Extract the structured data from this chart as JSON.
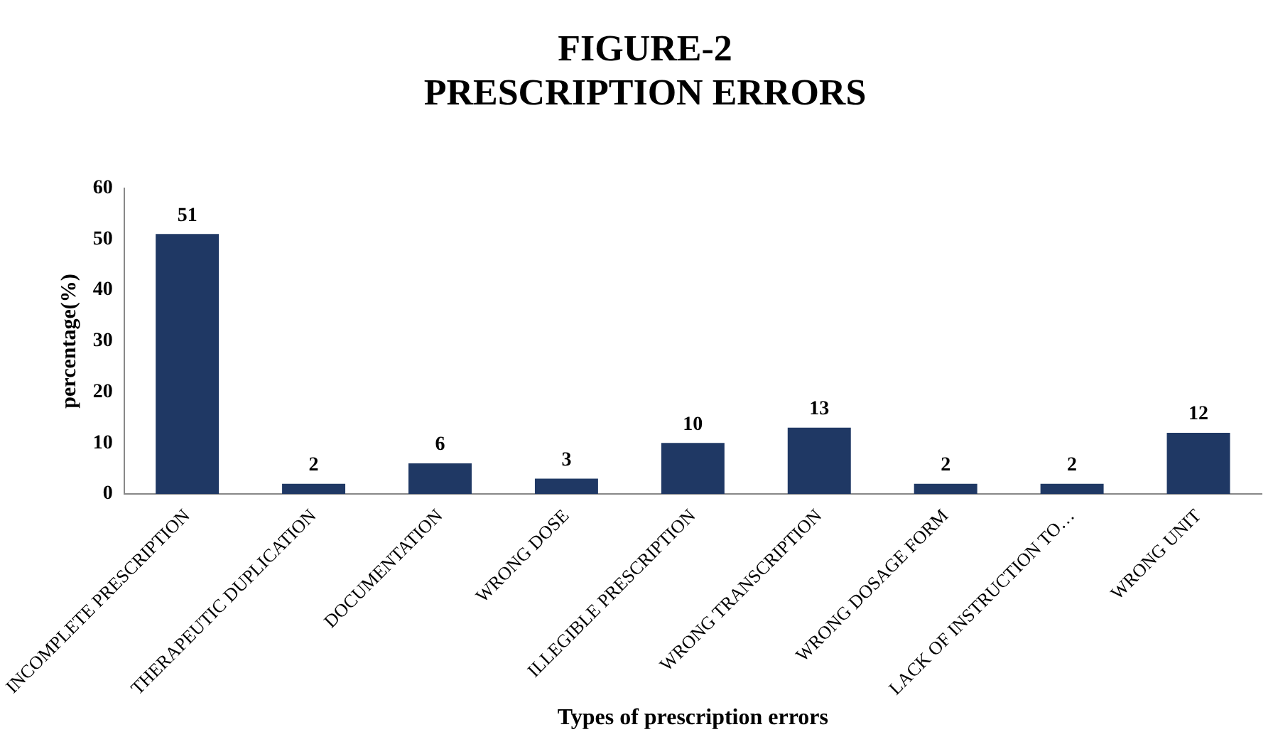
{
  "chart_data": {
    "type": "bar",
    "title": "FIGURE-2\nPRESCRIPTION ERRORS",
    "xlabel": "Types of prescription errors",
    "ylabel": "percentage(%)",
    "categories": [
      "INCOMPLETE PRESCRIPTION",
      "THERAPEUTIC DUPLICATION",
      "DOCUMENTATION",
      "WRONG DOSE",
      "ILLEGIBLE PRESCRIPTION",
      "WRONG TRANSCRIPTION",
      "WRONG DOSAGE FORM",
      "LACK OF INSTRUCTION TO…",
      "WRONG UNIT"
    ],
    "values": [
      51,
      2,
      6,
      3,
      10,
      13,
      2,
      2,
      12
    ],
    "color": "#1f3864",
    "ylim": [
      0,
      60
    ],
    "yticks": [
      0,
      10,
      20,
      30,
      40,
      50,
      60
    ],
    "grid": false,
    "legend": false,
    "data_labels": true
  }
}
